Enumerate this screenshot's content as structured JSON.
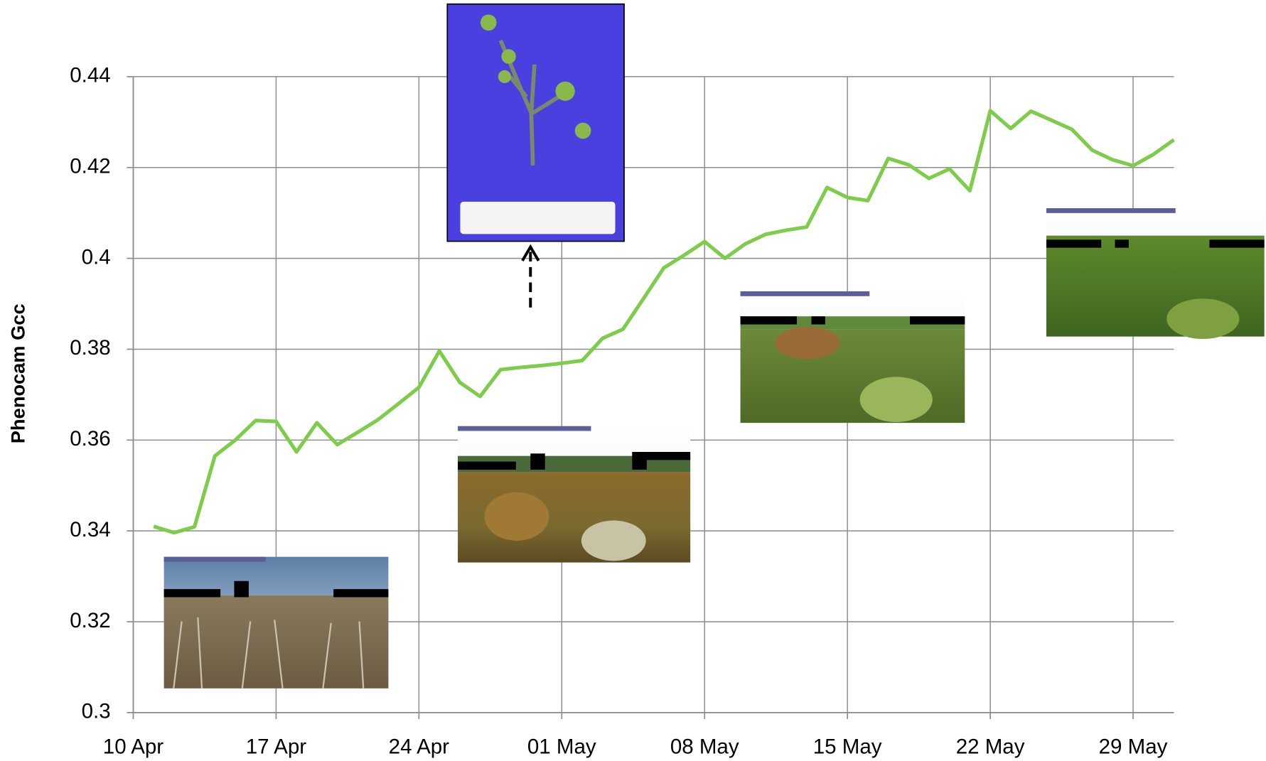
{
  "chart_data": {
    "type": "line",
    "y_label": "Phenocam Gcc",
    "x": [
      "11 Apr",
      "12 Apr",
      "13 Apr",
      "14 Apr",
      "15 Apr",
      "16 Apr",
      "17 Apr",
      "18 Apr",
      "19 Apr",
      "20 Apr",
      "21 Apr",
      "22 Apr",
      "23 Apr",
      "24 Apr",
      "25 Apr",
      "26 Apr",
      "27 Apr",
      "28 Apr",
      "29 Apr",
      "30 Apr",
      "01 May",
      "02 May",
      "03 May",
      "04 May",
      "05 May",
      "06 May",
      "07 May",
      "08 May",
      "09 May",
      "10 May",
      "11 May",
      "12 May",
      "13 May",
      "14 May",
      "15 May",
      "16 May",
      "17 May",
      "18 May",
      "19 May",
      "20 May",
      "21 May",
      "22 May",
      "23 May",
      "24 May",
      "25 May",
      "26 May",
      "27 May",
      "28 May",
      "29 May",
      "30 May",
      "31 May"
    ],
    "series": [
      {
        "name": "Phenocam Gcc",
        "color": "#7dcc4a",
        "values": [
          0.341,
          0.3396,
          0.3409,
          0.3565,
          0.36,
          0.3643,
          0.3641,
          0.3574,
          0.3638,
          0.359,
          0.3617,
          0.3645,
          0.368,
          0.3716,
          0.3796,
          0.3727,
          0.3696,
          0.3755,
          0.376,
          0.3764,
          0.3769,
          0.3775,
          0.3824,
          0.3844,
          0.3911,
          0.3979,
          0.4007,
          0.4037,
          0.4,
          0.4032,
          0.4053,
          0.4062,
          0.4069,
          0.4156,
          0.4134,
          0.4127,
          0.422,
          0.4206,
          0.4176,
          0.4197,
          0.4149,
          0.4325,
          0.4286,
          0.4324,
          0.4304,
          0.4284,
          0.4238,
          0.4217,
          0.4204,
          0.4229,
          0.4261
        ]
      }
    ],
    "xlim": [
      "10 Apr",
      "31 May"
    ],
    "xticks": [
      "10 Apr",
      "17 Apr",
      "24 Apr",
      "01 May",
      "08 May",
      "15 May",
      "22 May",
      "29 May"
    ],
    "ylim": [
      0.3,
      0.44
    ],
    "yticks": [
      0.3,
      0.32,
      0.34,
      0.36,
      0.38,
      0.4,
      0.42,
      0.44
    ],
    "grid": true
  }
}
